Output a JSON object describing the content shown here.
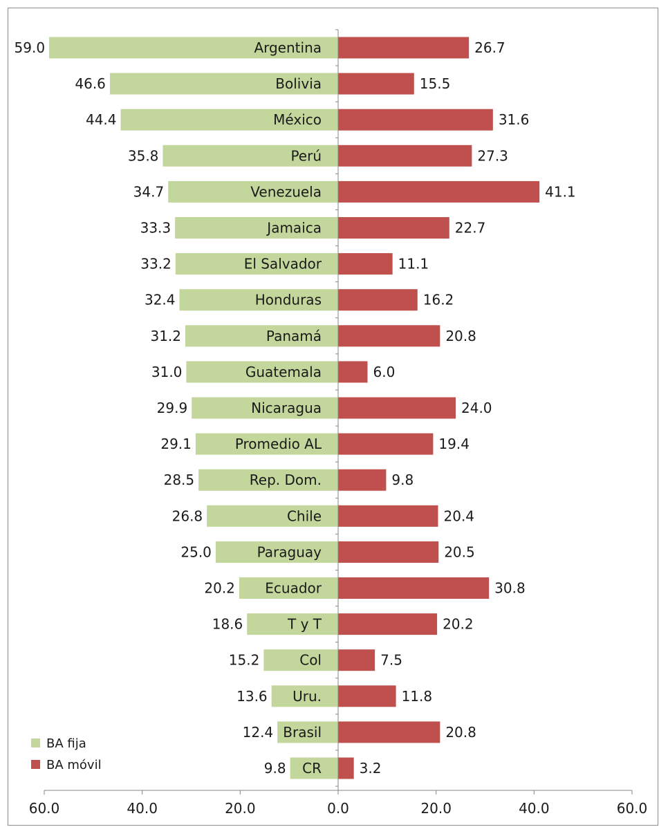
{
  "chart_data": {
    "type": "bar",
    "orientation": "horizontal",
    "layout": "diverging",
    "categories": [
      "Argentina",
      "Bolivia",
      "México",
      "Perú",
      "Venezuela",
      "Jamaica",
      "El Salvador",
      "Honduras",
      "Panamá",
      "Guatemala",
      "Nicaragua",
      "Promedio AL",
      "Rep. Dom.",
      "Chile",
      "Paraguay",
      "Ecuador",
      "T y T",
      "Col",
      "Uru.",
      "Brasil",
      "CR"
    ],
    "series": [
      {
        "name": "BA fija",
        "side": "left",
        "color": "#c3d69b",
        "values": [
          59.0,
          46.6,
          44.4,
          35.8,
          34.7,
          33.3,
          33.2,
          32.4,
          31.2,
          31.0,
          29.9,
          29.1,
          28.5,
          26.8,
          25.0,
          20.2,
          18.6,
          15.2,
          13.6,
          12.4,
          9.8
        ],
        "labels": [
          "59.0",
          "46.6",
          "44.4",
          "35.8",
          "34.7",
          "33.3",
          "33.2",
          "32.4",
          "31.2",
          "31.0",
          "29.9",
          "29.1",
          "28.5",
          "26.8",
          "25.0",
          "20.2",
          "18.6",
          "15.2",
          "13.6",
          "12.4",
          "9.8"
        ]
      },
      {
        "name": "BA móvil",
        "side": "right",
        "color": "#c0504d",
        "values": [
          26.7,
          15.5,
          31.6,
          27.3,
          41.1,
          22.7,
          11.1,
          16.2,
          20.8,
          6.0,
          24.0,
          19.4,
          9.8,
          20.4,
          20.5,
          30.8,
          20.2,
          7.5,
          11.8,
          20.8,
          3.2
        ],
        "labels": [
          "26.7",
          "15.5",
          "31.6",
          "27.3",
          "41.1",
          "22.7",
          "11.1",
          "16.2",
          "20.8",
          "6.0",
          "24.0",
          "19.4",
          "9.8",
          "20.4",
          "20.5",
          "30.8",
          "20.2",
          "7.5",
          "11.8",
          "20.8",
          "3.2"
        ]
      }
    ],
    "xlim": [
      -60,
      60
    ],
    "x_ticks": [
      -60,
      -40,
      -20,
      0,
      20,
      40,
      60
    ],
    "x_tick_labels": [
      "60.0",
      "40.0",
      "20.0",
      "0.0",
      "20.0",
      "40.0",
      "60.0"
    ],
    "title": "",
    "xlabel": "",
    "ylabel": "",
    "grid": false,
    "legend_position": "bottom-left",
    "legend": [
      "BA fija",
      "BA móvil"
    ]
  }
}
